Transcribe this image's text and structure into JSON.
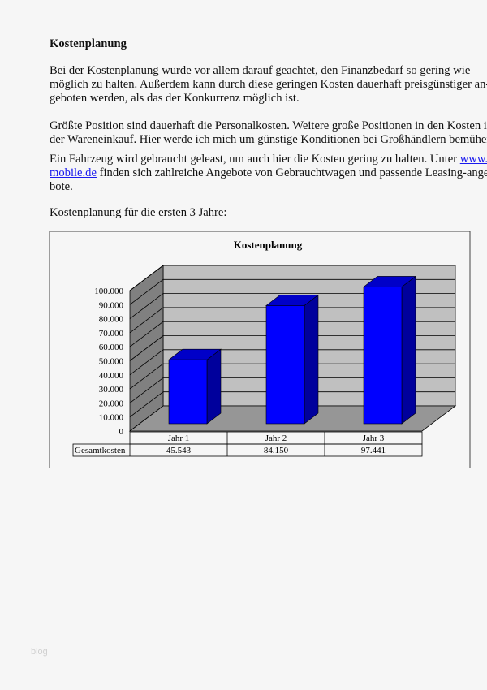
{
  "document": {
    "heading": "Kostenplanung",
    "paragraph1": [
      "Bei der Kostenplanung wurde vor allem darauf geachtet, den Finanzbedarf so gering wie",
      "möglich zu halten. Außerdem kann durch diese geringen Kosten dauerhaft preisgünstiger an-",
      "geboten werden, als das der Konkurrenz möglich ist."
    ],
    "paragraph2": [
      "Größte Position sind dauerhaft die Personalkosten. Weitere große Positionen in den Kosten ist",
      "der Wareneinkauf. Hier werde ich mich um günstige Konditionen bei Großhändlern bemühen."
    ],
    "paragraph3": {
      "line1_text": "Ein Fahrzeug wird gebraucht geleast, um auch hier die Kosten gering zu halten. Unter ",
      "link_part1": "www.-",
      "link_part2": "mobile.de",
      "line2_text": " finden sich zahlreiche Angebote von Gebrauchtwagen und passende Leasing-ange-",
      "line3_text": "bote."
    },
    "chart_intro": "Kostenplanung für die ersten 3 Jahre:",
    "watermark": "blog"
  },
  "chart_data": {
    "type": "bar",
    "style": "3d-column",
    "title": "Kostenplanung",
    "categories": [
      "Jahr 1",
      "Jahr 2",
      "Jahr 3"
    ],
    "series": [
      {
        "name": "Gesamtkosten",
        "values": [
          45543,
          84150,
          97441
        ],
        "labels": [
          "45.543",
          "84.150",
          "97.441"
        ]
      }
    ],
    "ylim": [
      0,
      100000
    ],
    "yticks": [
      "0",
      "10.000",
      "20.000",
      "30.000",
      "40.000",
      "50.000",
      "60.000",
      "70.000",
      "80.000",
      "90.000",
      "100.000"
    ],
    "grid": true,
    "data_table": true,
    "colors": {
      "bar_front": "#0000ff",
      "bar_side": "#00009c",
      "bar_top": "#0000c8",
      "back_wall": "#c0c0c0",
      "side_wall": "#808080",
      "floor": "#969696"
    }
  }
}
